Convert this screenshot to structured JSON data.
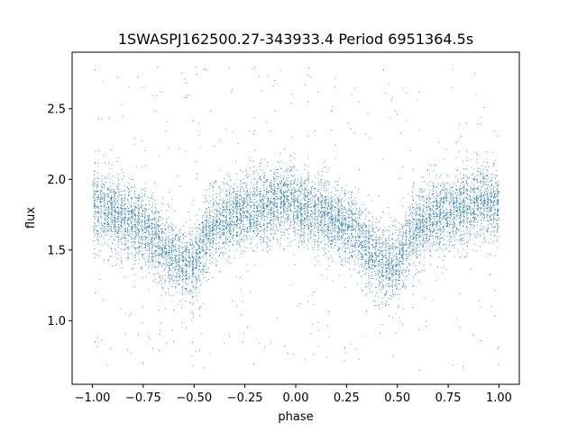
{
  "chart_data": {
    "type": "scatter",
    "title": "1SWASPJ162500.27-343933.4 Period 6951364.5s",
    "xlabel": "phase",
    "ylabel": "flux",
    "xlim": [
      -1.1,
      1.1
    ],
    "ylim": [
      0.55,
      2.9
    ],
    "xticks": [
      -1.0,
      -0.75,
      -0.5,
      -0.25,
      0.0,
      0.25,
      0.5,
      0.75,
      1.0
    ],
    "xtick_labels": [
      "−1.00",
      "−0.75",
      "−0.50",
      "−0.25",
      "0.00",
      "0.25",
      "0.50",
      "0.75",
      "1.00"
    ],
    "yticks": [
      1.0,
      1.5,
      2.0,
      2.5
    ],
    "ytick_labels": [
      "1.0",
      "1.5",
      "2.0",
      "2.5"
    ],
    "grid": false,
    "marker_color": "#1f77b4",
    "profile": {
      "phase": [
        -1.0,
        -0.9,
        -0.8,
        -0.7,
        -0.65,
        -0.6,
        -0.55,
        -0.5,
        -0.45,
        -0.4,
        -0.3,
        -0.2,
        -0.1,
        -0.05,
        0.0,
        0.1,
        0.2,
        0.3,
        0.35,
        0.4,
        0.45,
        0.5,
        0.55,
        0.6,
        0.7,
        0.8,
        0.9,
        1.0
      ],
      "flux": [
        1.82,
        1.77,
        1.7,
        1.62,
        1.5,
        1.45,
        1.4,
        1.4,
        1.58,
        1.68,
        1.75,
        1.78,
        1.85,
        1.88,
        1.82,
        1.77,
        1.7,
        1.62,
        1.5,
        1.45,
        1.4,
        1.4,
        1.58,
        1.68,
        1.75,
        1.78,
        1.85,
        1.82
      ]
    },
    "scatter_sigma": 0.13,
    "n_points": 9000,
    "outlier_fraction": 0.05,
    "outlier_range": [
      0.65,
      2.8
    ]
  }
}
